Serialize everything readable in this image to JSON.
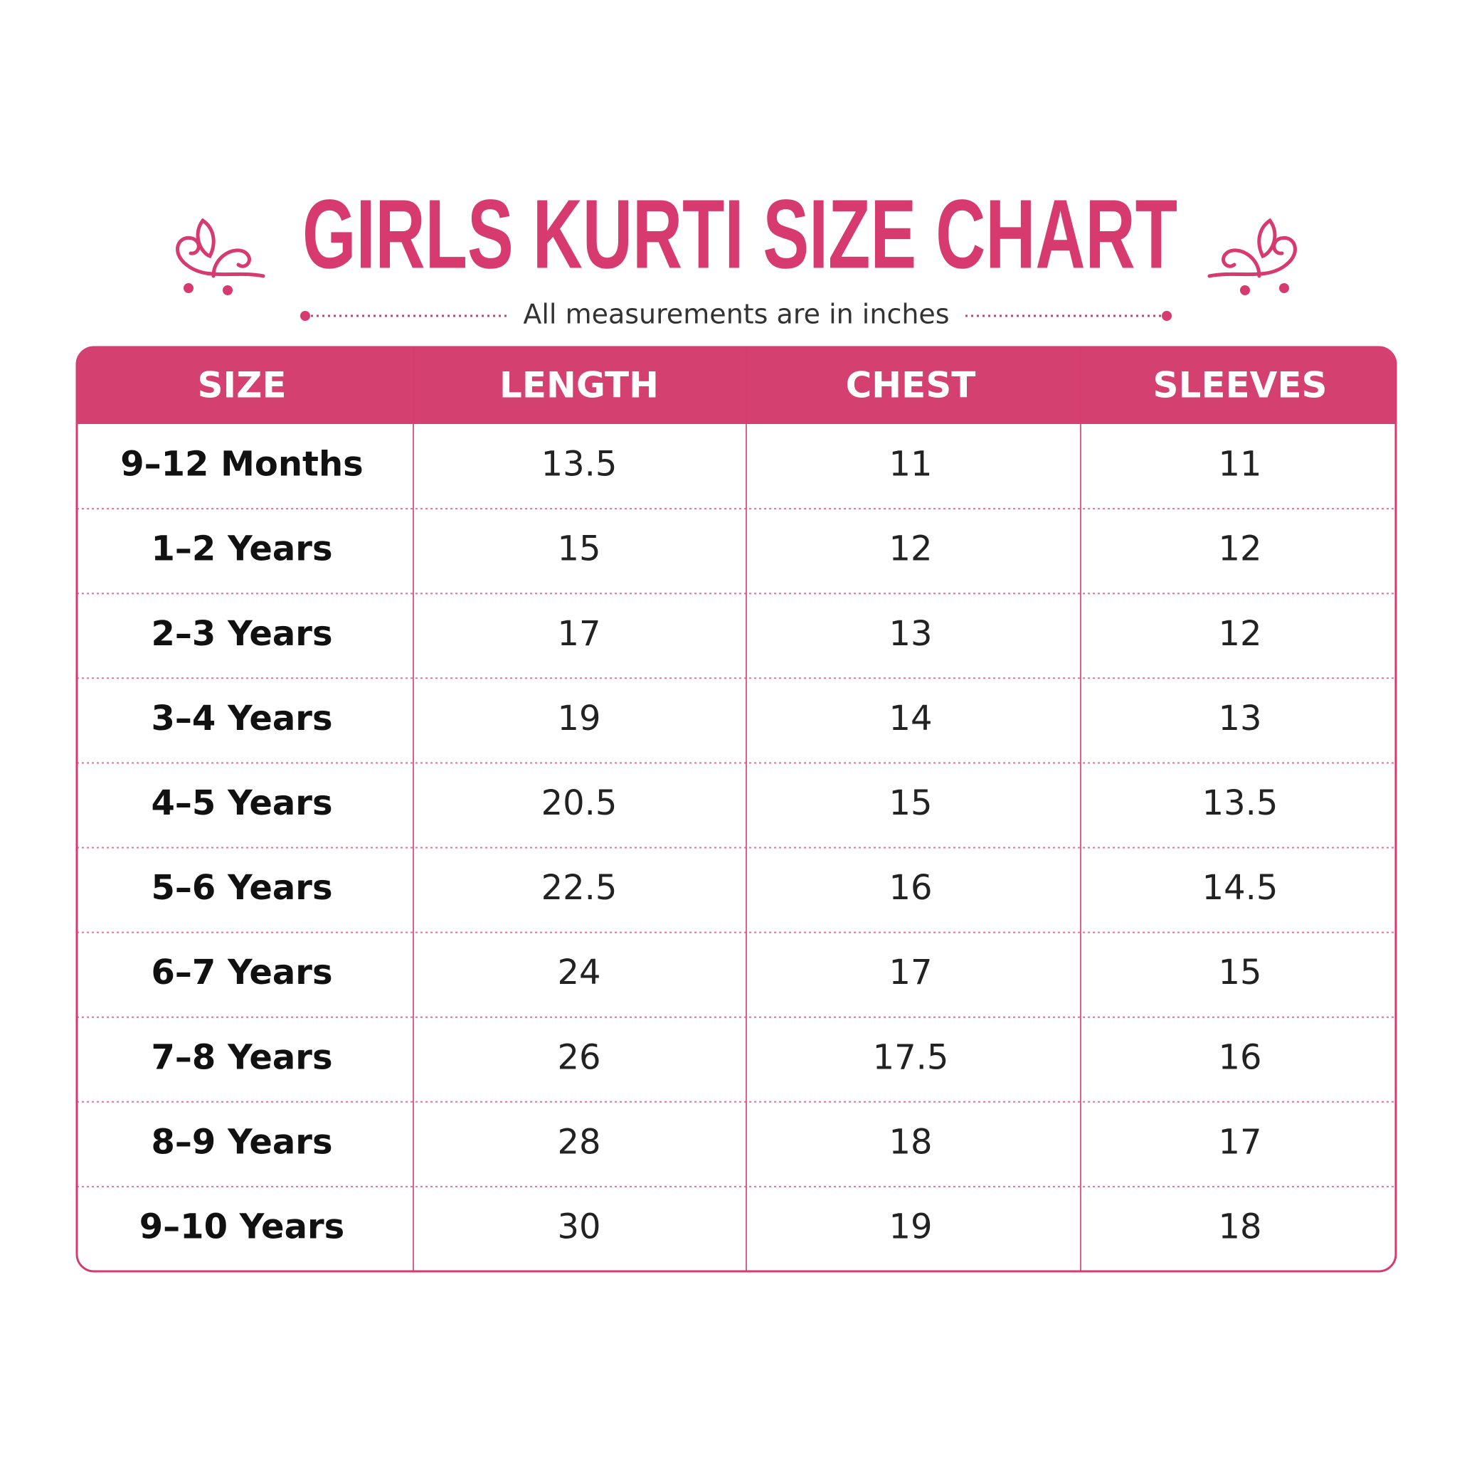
{
  "header": {
    "title": "GIRLS KURTI SIZE CHART",
    "subtitle": "All measurements are in inches"
  },
  "table": {
    "columns": [
      "SIZE",
      "LENGTH",
      "CHEST",
      "SLEEVES"
    ],
    "rows": [
      [
        "9–12 Months",
        13.5,
        11,
        11
      ],
      [
        "1–2 Years",
        15,
        12,
        12
      ],
      [
        "2–3 Years",
        17,
        13,
        12
      ],
      [
        "3–4 Years",
        19,
        14,
        13
      ],
      [
        "4–5 Years",
        20.5,
        15,
        13.5
      ],
      [
        "5–6 Years",
        22.5,
        16,
        14.5
      ],
      [
        "6–7 Years",
        24,
        17,
        15
      ],
      [
        "7–8 Years",
        26,
        17.5,
        16
      ],
      [
        "8–9 Years",
        28,
        18,
        17
      ],
      [
        "9–10 Years",
        30,
        19,
        18
      ]
    ]
  }
}
